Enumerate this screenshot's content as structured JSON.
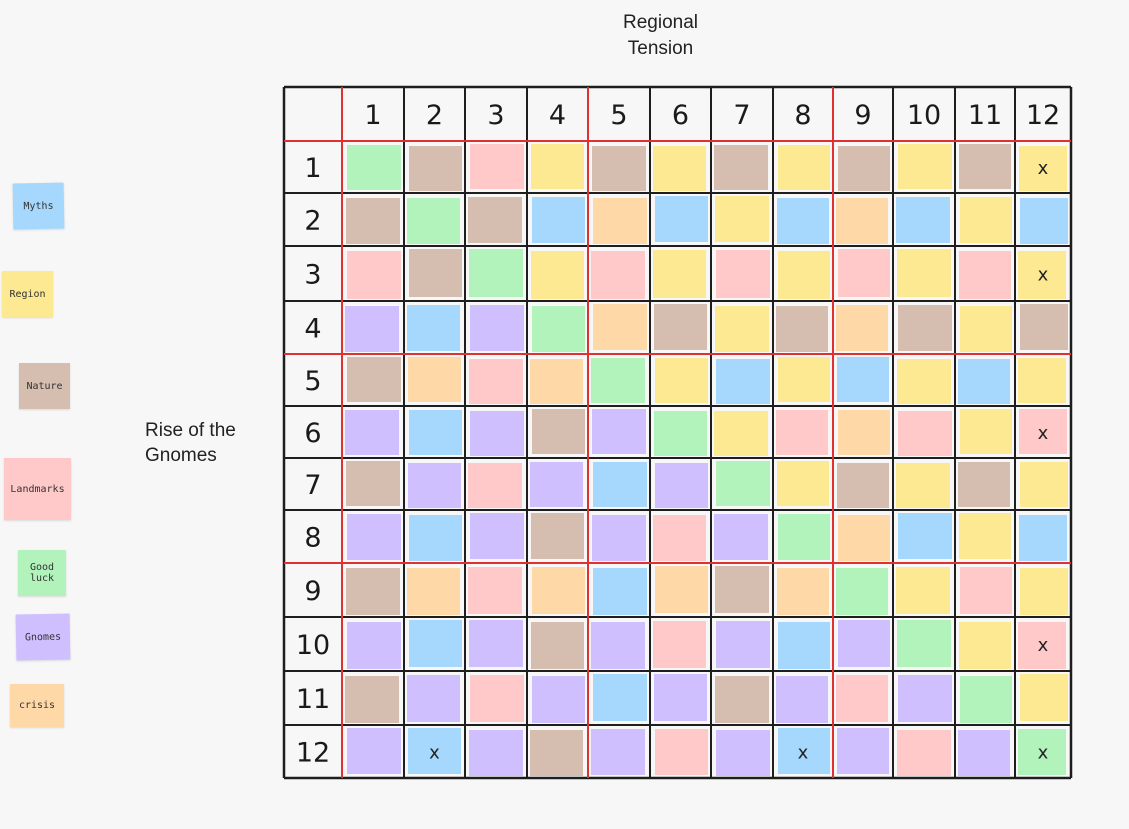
{
  "column_label": [
    "Regional",
    "Tension"
  ],
  "row_label": [
    "Rise of the",
    "Gnomes"
  ],
  "legend": [
    {
      "text": "Myths",
      "color": "#a5d8fc"
    },
    {
      "text": "Region",
      "color": "#fde992"
    },
    {
      "text": "Nature",
      "color": "#d5bdb0"
    },
    {
      "text": "Landmarks",
      "color": "#ffc9c9"
    },
    {
      "text": "Good luck",
      "color": "#b2f2bb"
    },
    {
      "text": "Gnomes",
      "color": "#d0bfff"
    },
    {
      "text": "crisis",
      "color": "#ffd8a8"
    }
  ],
  "colors": {
    "M": "#a5d8fc",
    "R": "#fde992",
    "N": "#d5bdb0",
    "L": "#ffc9c9",
    "G": "#b2f2bb",
    "P": "#d0bfff",
    "C": "#ffd8a8"
  },
  "column_headers": [
    "1",
    "2",
    "3",
    "4",
    "5",
    "6",
    "7",
    "8",
    "9",
    "10",
    "11",
    "12"
  ],
  "row_headers": [
    "1",
    "2",
    "3",
    "4",
    "5",
    "6",
    "7",
    "8",
    "9",
    "10",
    "11",
    "12"
  ],
  "cell_colors": [
    [
      "G",
      "N",
      "L",
      "R",
      "N",
      "R",
      "N",
      "R",
      "N",
      "R",
      "N",
      "R"
    ],
    [
      "N",
      "G",
      "N",
      "M",
      "C",
      "M",
      "R",
      "M",
      "C",
      "M",
      "R",
      "M"
    ],
    [
      "L",
      "N",
      "G",
      "R",
      "L",
      "R",
      "L",
      "R",
      "L",
      "R",
      "L",
      "R"
    ],
    [
      "P",
      "M",
      "P",
      "G",
      "C",
      "N",
      "R",
      "N",
      "C",
      "N",
      "R",
      "N"
    ],
    [
      "N",
      "C",
      "L",
      "C",
      "G",
      "R",
      "M",
      "R",
      "M",
      "R",
      "M",
      "R"
    ],
    [
      "P",
      "M",
      "P",
      "N",
      "P",
      "G",
      "R",
      "L",
      "C",
      "L",
      "R",
      "L"
    ],
    [
      "N",
      "P",
      "L",
      "P",
      "M",
      "P",
      "G",
      "R",
      "N",
      "R",
      "N",
      "R"
    ],
    [
      "P",
      "M",
      "P",
      "N",
      "P",
      "L",
      "P",
      "G",
      "C",
      "M",
      "R",
      "M"
    ],
    [
      "N",
      "C",
      "L",
      "C",
      "M",
      "C",
      "N",
      "C",
      "G",
      "R",
      "L",
      "R"
    ],
    [
      "P",
      "M",
      "P",
      "N",
      "P",
      "L",
      "P",
      "M",
      "P",
      "G",
      "R",
      "L"
    ],
    [
      "N",
      "P",
      "L",
      "P",
      "M",
      "P",
      "N",
      "P",
      "L",
      "P",
      "G",
      "R"
    ],
    [
      "P",
      "M",
      "P",
      "N",
      "P",
      "L",
      "P",
      "M",
      "P",
      "L",
      "P",
      "G"
    ]
  ],
  "marks": [
    {
      "row": 1,
      "col": 12,
      "text": "x"
    },
    {
      "row": 3,
      "col": 12,
      "text": "x"
    },
    {
      "row": 6,
      "col": 12,
      "text": "x"
    },
    {
      "row": 10,
      "col": 12,
      "text": "x"
    },
    {
      "row": 12,
      "col": 2,
      "text": "x"
    },
    {
      "row": 12,
      "col": 8,
      "text": "x"
    },
    {
      "row": 12,
      "col": 12,
      "text": "x"
    }
  ],
  "grid_line_color": "#1e1e1e",
  "divider_color": "#e03131"
}
